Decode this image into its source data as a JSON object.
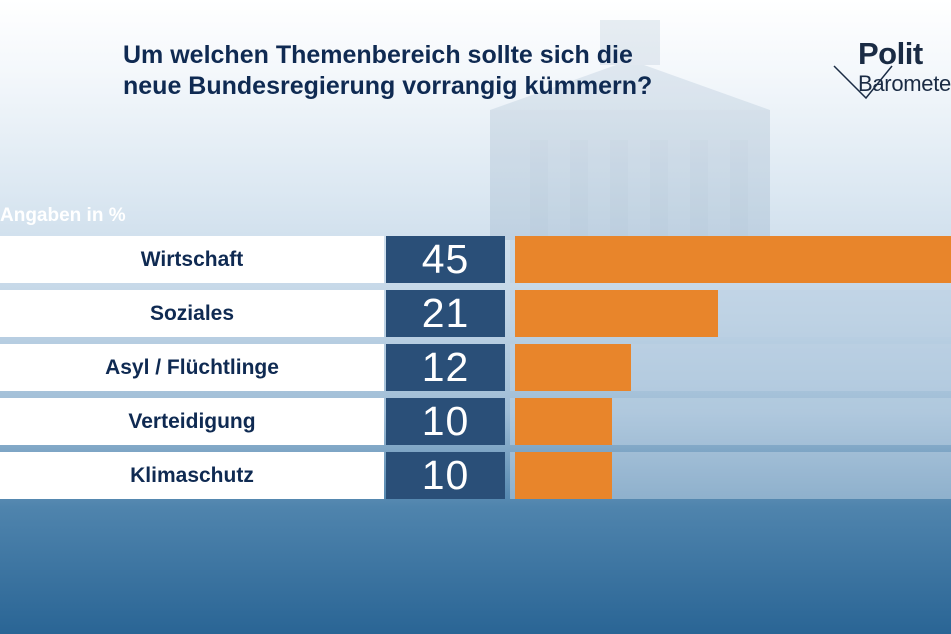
{
  "title_lines": [
    "Um welchen Themenbereich sollte sich die",
    "neue Bundesregierung vorrangig kümmern?"
  ],
  "logo": {
    "line1": "Polit",
    "line2": "Barometer"
  },
  "unit_label": "Angaben in %",
  "colors": {
    "bar": "#e8852b",
    "value_box": "#2a4f78",
    "title": "#0f2a52"
  },
  "chart_data": {
    "type": "bar",
    "orientation": "horizontal",
    "title": "Um welchen Themenbereich sollte sich die neue Bundesregierung vorrangig kümmern?",
    "categories": [
      "Wirtschaft",
      "Soziales",
      "Asyl / Flüchtlinge",
      "Verteidigung",
      "Klimaschutz"
    ],
    "values": [
      45,
      21,
      12,
      10,
      10
    ],
    "value_labels": [
      "45",
      "21",
      "12",
      "10",
      "10"
    ],
    "xlabel": "Angaben in %",
    "ylabel": "",
    "xlim": [
      0,
      45
    ]
  }
}
